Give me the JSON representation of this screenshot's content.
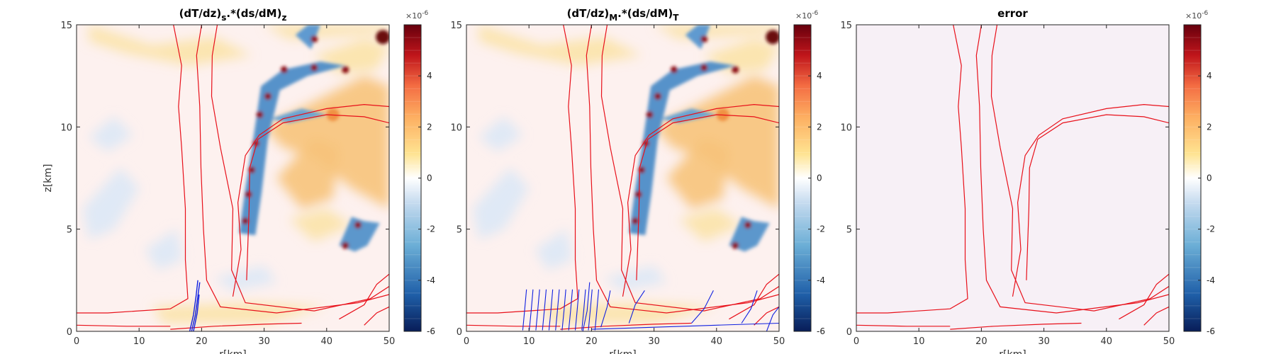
{
  "chart_data": [
    {
      "type": "heatmap",
      "title": "(dT/dz)s.*(ds/dM)z",
      "title_main": "(dT/dz)",
      "title_sub1": "s",
      "title_mid": ".*(ds/dM)",
      "title_sub2": "z",
      "xlabel": "r[km]",
      "ylabel": "z[km]",
      "xlim": [
        0,
        50
      ],
      "ylim": [
        0,
        15
      ],
      "xticks": [
        "0",
        "10",
        "20",
        "30",
        "40",
        "50"
      ],
      "yticks": [
        "0",
        "5",
        "10",
        "15"
      ],
      "colorbar": {
        "min": -6,
        "max": 6,
        "ticks": [
          "-6",
          "-4",
          "-2",
          "0",
          "2",
          "4"
        ],
        "exponent_base": "×10",
        "exponent": "-6"
      },
      "overlay": "red contour lines; blue contour lines near r=19km"
    },
    {
      "type": "heatmap",
      "title": "(dT/dz)M.*(ds/dM)T",
      "title_main": "(dT/dz)",
      "title_sub1": "M",
      "title_mid": ".*(ds/dM)",
      "title_sub2": "T",
      "xlabel": "r[km]",
      "ylabel": "",
      "xlim": [
        0,
        50
      ],
      "ylim": [
        0,
        15
      ],
      "xticks": [
        "0",
        "10",
        "20",
        "30",
        "40",
        "50"
      ],
      "yticks": [
        "0",
        "5",
        "10",
        "15"
      ],
      "colorbar": {
        "min": -6,
        "max": 6,
        "ticks": [
          "-6",
          "-4",
          "-2",
          "0",
          "2",
          "4"
        ],
        "exponent_base": "×10",
        "exponent": "-6"
      },
      "overlay": "red contour lines; many blue contour lines at low levels"
    },
    {
      "type": "heatmap",
      "title": "error",
      "title_main": "error",
      "title_sub1": "",
      "title_mid": "",
      "title_sub2": "",
      "xlabel": "r[km]",
      "ylabel": "",
      "xlim": [
        0,
        50
      ],
      "ylim": [
        0,
        15
      ],
      "xticks": [
        "0",
        "10",
        "20",
        "30",
        "40",
        "50"
      ],
      "yticks": [
        "0",
        "5",
        "10",
        "15"
      ],
      "colorbar": {
        "min": -6,
        "max": 6,
        "ticks": [
          "-6",
          "-4",
          "-2",
          "0",
          "2",
          "4"
        ],
        "exponent_base": "×10",
        "exponent": "-6"
      },
      "overlay": "red contour lines"
    }
  ],
  "colors": {
    "contour_red": "#e8101a",
    "contour_blue": "#1020e0",
    "cmap_low": "#081d58",
    "cmap_mid": "#ffffff",
    "cmap_high": "#67000d"
  }
}
